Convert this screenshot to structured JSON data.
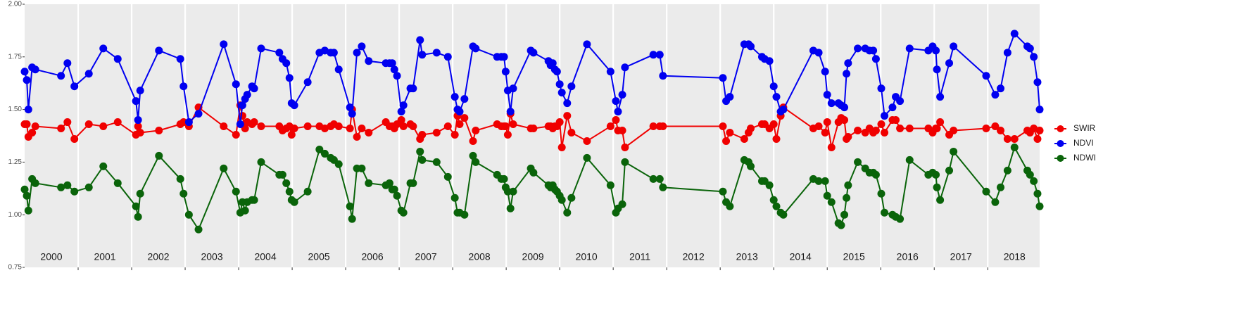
{
  "chart_data": {
    "type": "line",
    "x": [
      2000.0,
      2000.04,
      2000.07,
      2000.14,
      2000.2,
      2000.68,
      2000.8,
      2000.93,
      2001.2,
      2001.47,
      2001.74,
      2002.08,
      2002.12,
      2002.16,
      2002.51,
      2002.91,
      2002.97,
      2003.07,
      2003.25,
      2003.72,
      2003.95,
      2004.03,
      2004.07,
      2004.12,
      2004.16,
      2004.25,
      2004.29,
      2004.42,
      2004.76,
      2004.82,
      2004.89,
      2004.95,
      2004.99,
      2005.04,
      2005.29,
      2005.51,
      2005.61,
      2005.72,
      2005.78,
      2005.87,
      2006.08,
      2006.12,
      2006.21,
      2006.3,
      2006.43,
      2006.75,
      2006.82,
      2006.87,
      2006.91,
      2006.96,
      2007.04,
      2007.08,
      2007.21,
      2007.26,
      2007.39,
      2007.43,
      2007.7,
      2007.91,
      2008.04,
      2008.09,
      2008.13,
      2008.22,
      2008.38,
      2008.43,
      2008.83,
      2008.91,
      2008.96,
      2008.99,
      2009.03,
      2009.08,
      2009.13,
      2009.46,
      2009.51,
      2009.79,
      2009.83,
      2009.87,
      2009.91,
      2009.95,
      2010.0,
      2010.04,
      2010.14,
      2010.22,
      2010.51,
      2010.95,
      2011.05,
      2011.09,
      2011.17,
      2011.22,
      2011.75,
      2011.87,
      2011.93,
      2013.05,
      2013.11,
      2013.18,
      2013.45,
      2013.53,
      2013.57,
      2013.78,
      2013.83,
      2013.92,
      2014.0,
      2014.05,
      2014.13,
      2014.18,
      2014.74,
      2014.84,
      2014.96,
      2015.0,
      2015.08,
      2015.21,
      2015.26,
      2015.32,
      2015.36,
      2015.39,
      2015.57,
      2015.71,
      2015.79,
      2015.86,
      2015.91,
      2016.01,
      2016.07,
      2016.22,
      2016.28,
      2016.36,
      2016.54,
      2016.89,
      2016.97,
      2017.03,
      2017.05,
      2017.11,
      2017.28,
      2017.36,
      2017.97,
      2018.14,
      2018.24,
      2018.37,
      2018.5,
      2018.74,
      2018.79,
      2018.86,
      2018.93,
      2018.97
    ],
    "series": [
      {
        "name": "SWIR",
        "color": "#f00000",
        "values": [
          1.43,
          1.43,
          1.37,
          1.39,
          1.42,
          1.41,
          1.44,
          1.36,
          1.43,
          1.42,
          1.44,
          1.38,
          1.42,
          1.39,
          1.4,
          1.43,
          1.44,
          1.42,
          1.51,
          1.42,
          1.38,
          1.52,
          1.47,
          1.41,
          1.44,
          1.43,
          1.44,
          1.42,
          1.42,
          1.4,
          1.41,
          1.42,
          1.38,
          1.41,
          1.42,
          1.42,
          1.41,
          1.42,
          1.43,
          1.42,
          1.41,
          1.5,
          1.37,
          1.41,
          1.39,
          1.44,
          1.42,
          1.42,
          1.41,
          1.43,
          1.45,
          1.42,
          1.43,
          1.42,
          1.36,
          1.38,
          1.39,
          1.42,
          1.38,
          1.47,
          1.43,
          1.46,
          1.35,
          1.4,
          1.43,
          1.42,
          1.42,
          1.42,
          1.38,
          1.48,
          1.43,
          1.41,
          1.41,
          1.42,
          1.42,
          1.41,
          1.42,
          1.42,
          1.44,
          1.32,
          1.47,
          1.39,
          1.35,
          1.42,
          1.45,
          1.4,
          1.4,
          1.32,
          1.42,
          1.42,
          1.42,
          1.42,
          1.35,
          1.39,
          1.36,
          1.39,
          1.41,
          1.43,
          1.43,
          1.41,
          1.43,
          1.36,
          1.47,
          1.51,
          1.41,
          1.42,
          1.39,
          1.44,
          1.32,
          1.44,
          1.46,
          1.45,
          1.36,
          1.37,
          1.4,
          1.39,
          1.41,
          1.39,
          1.4,
          1.43,
          1.39,
          1.45,
          1.45,
          1.41,
          1.41,
          1.41,
          1.39,
          1.41,
          1.41,
          1.44,
          1.38,
          1.4,
          1.41,
          1.42,
          1.4,
          1.36,
          1.36,
          1.4,
          1.39,
          1.41,
          1.36,
          1.4
        ]
      },
      {
        "name": "NDVI",
        "color": "#0000f0",
        "values": [
          1.68,
          1.64,
          1.5,
          1.7,
          1.69,
          1.66,
          1.72,
          1.61,
          1.67,
          1.79,
          1.74,
          1.54,
          1.45,
          1.59,
          1.78,
          1.74,
          1.61,
          1.44,
          1.48,
          1.81,
          1.62,
          1.43,
          1.52,
          1.55,
          1.57,
          1.61,
          1.6,
          1.79,
          1.77,
          1.74,
          1.72,
          1.65,
          1.53,
          1.52,
          1.63,
          1.77,
          1.78,
          1.77,
          1.77,
          1.69,
          1.51,
          1.48,
          1.77,
          1.8,
          1.73,
          1.72,
          1.72,
          1.72,
          1.69,
          1.66,
          1.49,
          1.52,
          1.6,
          1.6,
          1.83,
          1.76,
          1.77,
          1.75,
          1.56,
          1.5,
          1.49,
          1.55,
          1.8,
          1.79,
          1.75,
          1.75,
          1.75,
          1.68,
          1.59,
          1.49,
          1.6,
          1.78,
          1.77,
          1.73,
          1.71,
          1.72,
          1.69,
          1.68,
          1.62,
          1.58,
          1.53,
          1.61,
          1.81,
          1.68,
          1.54,
          1.49,
          1.57,
          1.7,
          1.76,
          1.76,
          1.66,
          1.65,
          1.54,
          1.56,
          1.81,
          1.81,
          1.8,
          1.75,
          1.74,
          1.73,
          1.61,
          1.56,
          1.49,
          1.5,
          1.78,
          1.77,
          1.68,
          1.57,
          1.53,
          1.53,
          1.52,
          1.51,
          1.67,
          1.72,
          1.79,
          1.79,
          1.78,
          1.78,
          1.74,
          1.6,
          1.47,
          1.51,
          1.56,
          1.54,
          1.79,
          1.78,
          1.8,
          1.78,
          1.69,
          1.56,
          1.72,
          1.8,
          1.66,
          1.57,
          1.6,
          1.77,
          1.86,
          1.8,
          1.79,
          1.75,
          1.63,
          1.5
        ]
      },
      {
        "name": "NDWI",
        "color": "#0a640a",
        "values": [
          1.12,
          1.09,
          1.02,
          1.17,
          1.15,
          1.13,
          1.14,
          1.11,
          1.13,
          1.23,
          1.15,
          1.04,
          0.99,
          1.1,
          1.28,
          1.17,
          1.1,
          1.0,
          0.93,
          1.22,
          1.11,
          1.01,
          1.06,
          1.02,
          1.06,
          1.07,
          1.07,
          1.25,
          1.19,
          1.19,
          1.15,
          1.11,
          1.07,
          1.06,
          1.11,
          1.31,
          1.29,
          1.27,
          1.26,
          1.24,
          1.04,
          0.98,
          1.22,
          1.22,
          1.15,
          1.14,
          1.15,
          1.12,
          1.12,
          1.09,
          1.02,
          1.01,
          1.15,
          1.15,
          1.3,
          1.26,
          1.25,
          1.18,
          1.08,
          1.01,
          1.01,
          1.0,
          1.28,
          1.25,
          1.19,
          1.17,
          1.17,
          1.13,
          1.11,
          1.03,
          1.11,
          1.22,
          1.2,
          1.14,
          1.13,
          1.14,
          1.12,
          1.11,
          1.09,
          1.07,
          1.01,
          1.08,
          1.27,
          1.14,
          1.01,
          1.03,
          1.05,
          1.25,
          1.17,
          1.17,
          1.13,
          1.11,
          1.06,
          1.04,
          1.26,
          1.25,
          1.23,
          1.16,
          1.16,
          1.14,
          1.07,
          1.04,
          1.01,
          1.0,
          1.17,
          1.16,
          1.16,
          1.09,
          1.06,
          0.96,
          0.95,
          1.0,
          1.08,
          1.14,
          1.25,
          1.22,
          1.2,
          1.2,
          1.19,
          1.1,
          1.01,
          1.0,
          0.99,
          0.98,
          1.26,
          1.19,
          1.2,
          1.19,
          1.13,
          1.07,
          1.21,
          1.3,
          1.11,
          1.06,
          1.13,
          1.21,
          1.32,
          1.21,
          1.19,
          1.16,
          1.1,
          1.04
        ]
      }
    ],
    "xlim": [
      2000,
      2018.97
    ],
    "xticks": [
      {
        "value": 2000.5,
        "label": "2000"
      },
      {
        "value": 2001.5,
        "label": "2001"
      },
      {
        "value": 2002.5,
        "label": "2002"
      },
      {
        "value": 2003.5,
        "label": "2003"
      },
      {
        "value": 2004.5,
        "label": "2004"
      },
      {
        "value": 2005.5,
        "label": "2005"
      },
      {
        "value": 2006.5,
        "label": "2006"
      },
      {
        "value": 2007.5,
        "label": "2007"
      },
      {
        "value": 2008.5,
        "label": "2008"
      },
      {
        "value": 2009.5,
        "label": "2009"
      },
      {
        "value": 2010.5,
        "label": "2010"
      },
      {
        "value": 2011.5,
        "label": "2011"
      },
      {
        "value": 2012.5,
        "label": "2012"
      },
      {
        "value": 2013.5,
        "label": "2013"
      },
      {
        "value": 2014.5,
        "label": "2014"
      },
      {
        "value": 2015.5,
        "label": "2015"
      },
      {
        "value": 2016.5,
        "label": "2016"
      },
      {
        "value": 2017.5,
        "label": "2017"
      },
      {
        "value": 2018.5,
        "label": "2018"
      }
    ],
    "xgrid": [
      2001,
      2002,
      2003,
      2004,
      2005,
      2006,
      2007,
      2008,
      2009,
      2010,
      2011,
      2012,
      2013,
      2014,
      2015,
      2016,
      2017,
      2018
    ],
    "ylim": [
      0.75,
      2.0
    ],
    "yticks": [
      0.75,
      {
        "value": 1.0,
        "label": "1.00"
      },
      1.25,
      {
        "value": 1.5,
        "label": "1.50"
      },
      1.75,
      {
        "value": 2.0,
        "label": "2.00"
      }
    ],
    "legend": "right"
  }
}
